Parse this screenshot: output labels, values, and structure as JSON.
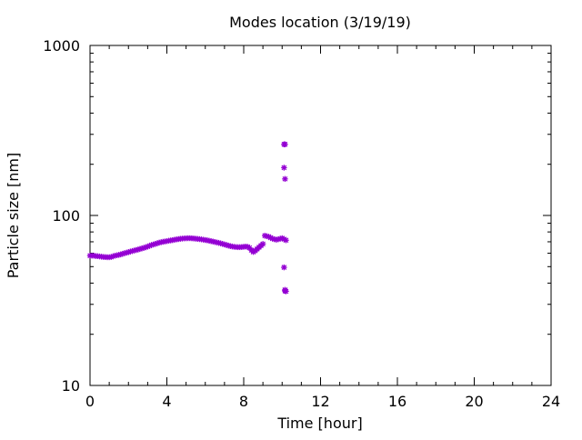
{
  "chart_data": {
    "type": "scatter",
    "title": "Modes location (3/19/19)",
    "xlabel": "Time [hour]",
    "ylabel": "Particle size [nm]",
    "xlim": [
      0,
      24
    ],
    "ylim": [
      10,
      1000
    ],
    "yscale": "log",
    "grid": false,
    "legend": "none",
    "xticks": [
      0,
      4,
      8,
      12,
      16,
      20,
      24
    ],
    "xtick_labels": [
      "0",
      "4",
      "8",
      "12",
      "16",
      "20",
      "24"
    ],
    "yticks": [
      10,
      100,
      1000
    ],
    "ytick_labels": [
      "10",
      "100",
      "1000"
    ],
    "marker_color": "#9400d3",
    "series": [
      {
        "x": [
          0.0,
          0.1,
          0.2,
          0.3,
          0.4,
          0.5,
          0.6,
          0.7,
          0.8,
          0.9,
          1.0,
          1.1,
          1.2,
          1.3,
          1.4,
          1.5,
          1.6,
          1.7,
          1.8,
          1.9,
          2.0,
          2.1,
          2.2,
          2.3,
          2.4,
          2.5,
          2.6,
          2.7,
          2.8,
          2.9,
          3.0,
          3.1,
          3.2,
          3.3,
          3.4,
          3.5,
          3.6,
          3.7,
          3.8,
          3.9,
          4.0,
          4.1,
          4.2,
          4.3,
          4.4,
          4.5,
          4.6,
          4.7,
          4.8,
          4.9,
          5.0,
          5.1,
          5.2,
          5.3,
          5.4,
          5.5,
          5.6,
          5.7,
          5.8,
          5.9,
          6.0,
          6.1,
          6.2,
          6.3,
          6.4,
          6.5,
          6.6,
          6.7,
          6.8,
          6.9,
          7.0,
          7.1,
          7.2,
          7.3,
          7.4,
          7.5,
          7.6,
          7.7,
          7.8,
          7.9,
          8.0,
          8.1,
          8.2,
          8.3,
          8.4,
          8.5,
          8.6,
          8.7,
          8.8,
          8.9,
          9.0,
          9.1,
          9.2,
          9.3,
          9.4,
          9.5,
          9.6,
          9.7,
          9.8,
          9.9,
          10.0,
          10.1,
          10.2,
          10.1,
          10.15,
          10.1,
          10.15,
          10.1,
          10.15,
          10.15,
          10.2
        ],
        "y": [
          58,
          58,
          58,
          57.7,
          57.6,
          57.4,
          57.2,
          57,
          56.9,
          56.8,
          56.8,
          57,
          57.5,
          58,
          58.3,
          58.6,
          59,
          59.5,
          60,
          60.4,
          60.8,
          61.3,
          61.8,
          62.2,
          62.6,
          63,
          63.5,
          64,
          64.5,
          65,
          65.6,
          66.3,
          67,
          67.5,
          68,
          68.6,
          69.2,
          69.6,
          70,
          70.3,
          70.6,
          71,
          71.3,
          71.6,
          72,
          72.3,
          72.6,
          72.9,
          73.1,
          73.3,
          73.4,
          73.5,
          73.5,
          73.4,
          73.2,
          73,
          72.8,
          72.6,
          72.3,
          72,
          71.7,
          71.4,
          71,
          70.6,
          70.2,
          69.8,
          69.4,
          69,
          68.5,
          68,
          67.5,
          67,
          66.5,
          66,
          65.7,
          65.4,
          65.2,
          65.1,
          65.1,
          65.2,
          65.4,
          65.6,
          65.4,
          64.5,
          62.5,
          61,
          62,
          63.5,
          65,
          66.5,
          68,
          76,
          75.5,
          75,
          74,
          73,
          72.5,
          72,
          72.5,
          73,
          73.5,
          72.5,
          71.5,
          262,
          262,
          191,
          164,
          49.5,
          36,
          36.5,
          35.8
        ]
      }
    ]
  }
}
